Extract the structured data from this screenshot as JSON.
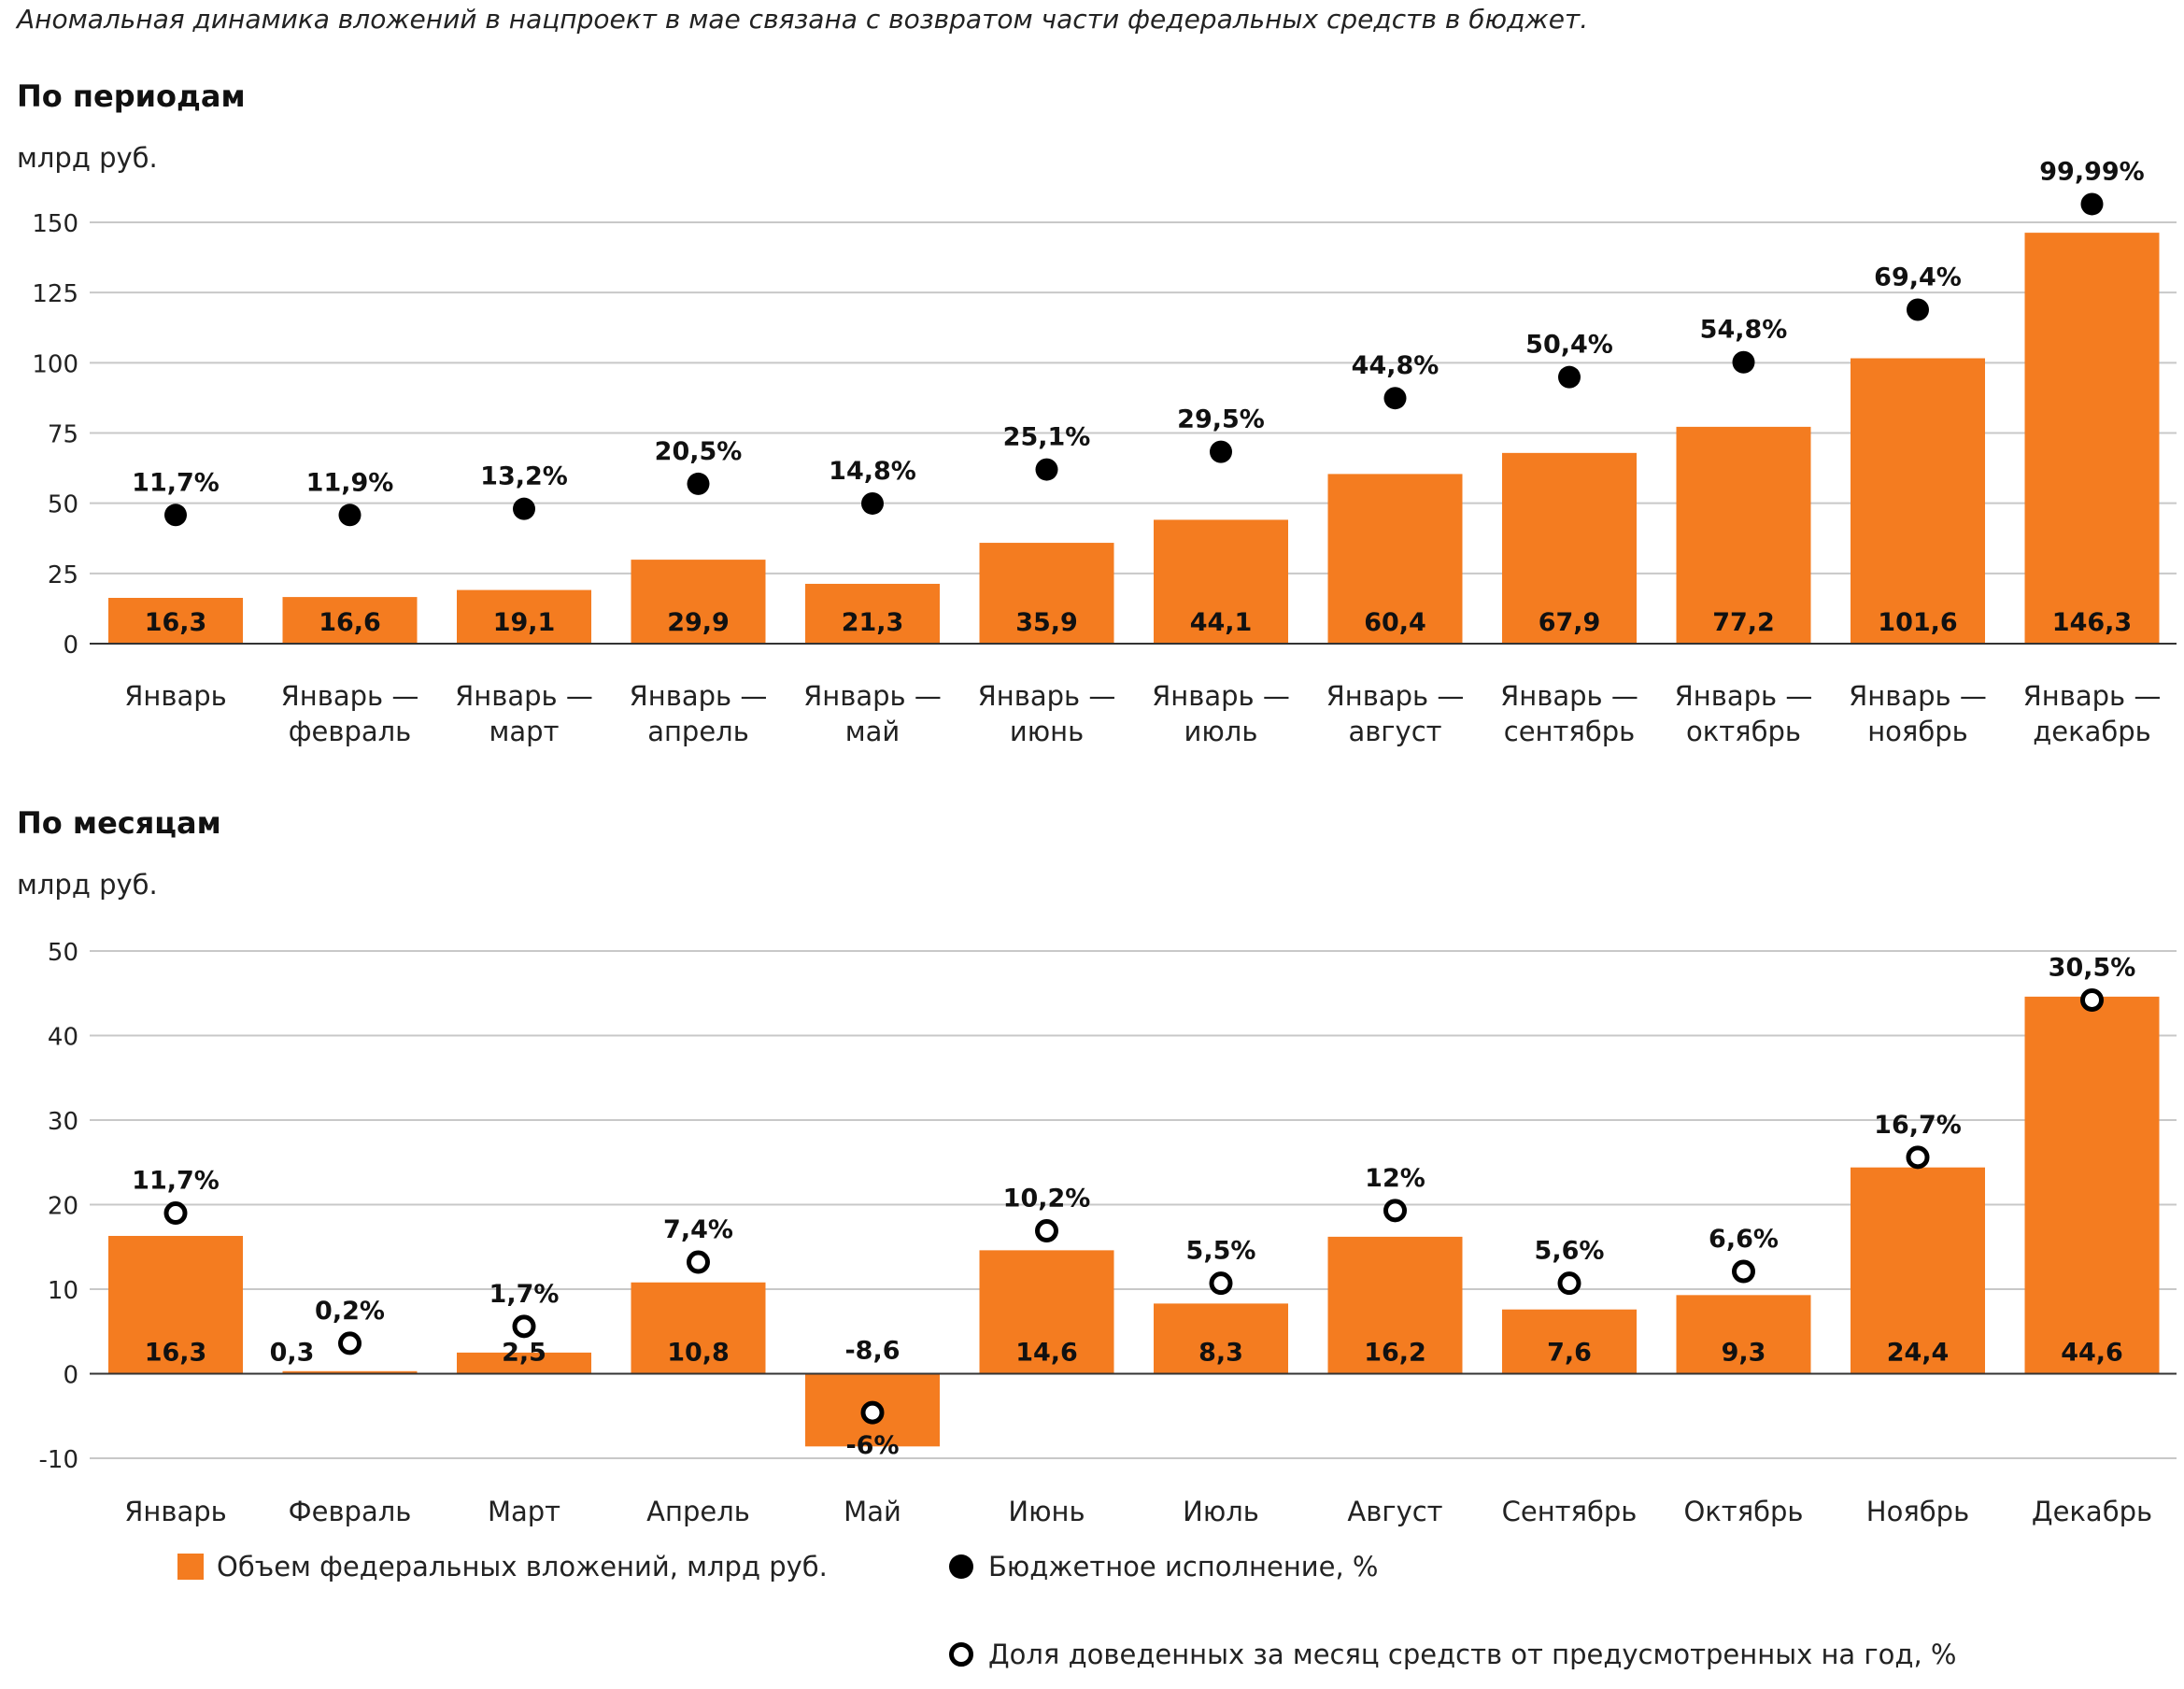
{
  "subtitle": "Аномальная динамика вложений в нацпроект в мае связана с возвратом части федеральных средств в бюджет.",
  "colors": {
    "bar": "#f47c20",
    "dot": "#000000",
    "grid": "#c8c8c8"
  },
  "legend": {
    "bars": "Объем федеральных вложений, млрд руб.",
    "filled": "Бюджетное исполнение, %",
    "open": "Доля доведенных за месяц средств от предусмотренных на год, %"
  },
  "chart_data": [
    {
      "type": "bar",
      "title": "По периодам",
      "ylabel": "млрд руб.",
      "ylim": [
        0,
        150
      ],
      "yticks": [
        0,
        25,
        50,
        75,
        100,
        125,
        150
      ],
      "categories": [
        [
          "Январь"
        ],
        [
          "Январь —",
          "февраль"
        ],
        [
          "Январь —",
          "март"
        ],
        [
          "Январь —",
          "апрель"
        ],
        [
          "Январь —",
          "май"
        ],
        [
          "Январь —",
          "июнь"
        ],
        [
          "Январь —",
          "июль"
        ],
        [
          "Январь —",
          "август"
        ],
        [
          "Январь —",
          "сентябрь"
        ],
        [
          "Январь —",
          "октябрь"
        ],
        [
          "Январь —",
          "ноябрь"
        ],
        [
          "Январь —",
          "декабрь"
        ]
      ],
      "values": [
        16.3,
        16.6,
        19.1,
        29.9,
        21.3,
        35.9,
        44.1,
        60.4,
        67.9,
        77.2,
        101.6,
        146.3
      ],
      "value_labels": [
        "16,3",
        "16,6",
        "19,1",
        "29,9",
        "21,3",
        "35,9",
        "44,1",
        "60,4",
        "67,9",
        "77,2",
        "101,6",
        "146,3"
      ],
      "marker_style": "filled",
      "markers": [
        45.8,
        45.8,
        48,
        56.9,
        49.9,
        62,
        68.3,
        87.4,
        94.9,
        100.2,
        118.9,
        156.5
      ],
      "marker_labels": [
        "11,7%",
        "11,9%",
        "13,2%",
        "20,5%",
        "14,8%",
        "25,1%",
        "29,5%",
        "44,8%",
        "50,4%",
        "54,8%",
        "69,4%",
        "99,99%"
      ]
    },
    {
      "type": "bar",
      "title": "По месяцам",
      "ylabel": "млрд руб.",
      "ylim": [
        -10,
        50
      ],
      "yticks": [
        -10,
        0,
        10,
        20,
        30,
        40,
        50
      ],
      "categories": [
        [
          "Январь"
        ],
        [
          "Февраль"
        ],
        [
          "Март"
        ],
        [
          "Апрель"
        ],
        [
          "Май"
        ],
        [
          "Июнь"
        ],
        [
          "Июль"
        ],
        [
          "Август"
        ],
        [
          "Сентябрь"
        ],
        [
          "Октябрь"
        ],
        [
          "Ноябрь"
        ],
        [
          "Декабрь"
        ]
      ],
      "values": [
        16.3,
        0.3,
        2.5,
        10.8,
        -8.6,
        14.6,
        8.3,
        16.2,
        7.6,
        9.3,
        24.4,
        44.6
      ],
      "value_labels": [
        "16,3",
        "0,3",
        "2,5",
        "10,8",
        "-8,6",
        "14,6",
        "8,3",
        "16,2",
        "7,6",
        "9,3",
        "24,4",
        "44,6"
      ],
      "marker_style": "open",
      "markers": [
        19,
        3.6,
        5.6,
        13.2,
        -4.6,
        16.9,
        10.7,
        19.3,
        10.7,
        12.1,
        25.6,
        44.2
      ],
      "marker_labels": [
        "11,7%",
        "0,2%",
        "1,7%",
        "7,4%",
        "-6%",
        "10,2%",
        "5,5%",
        "12%",
        "5,6%",
        "6,6%",
        "16,7%",
        "30,5%"
      ]
    }
  ]
}
